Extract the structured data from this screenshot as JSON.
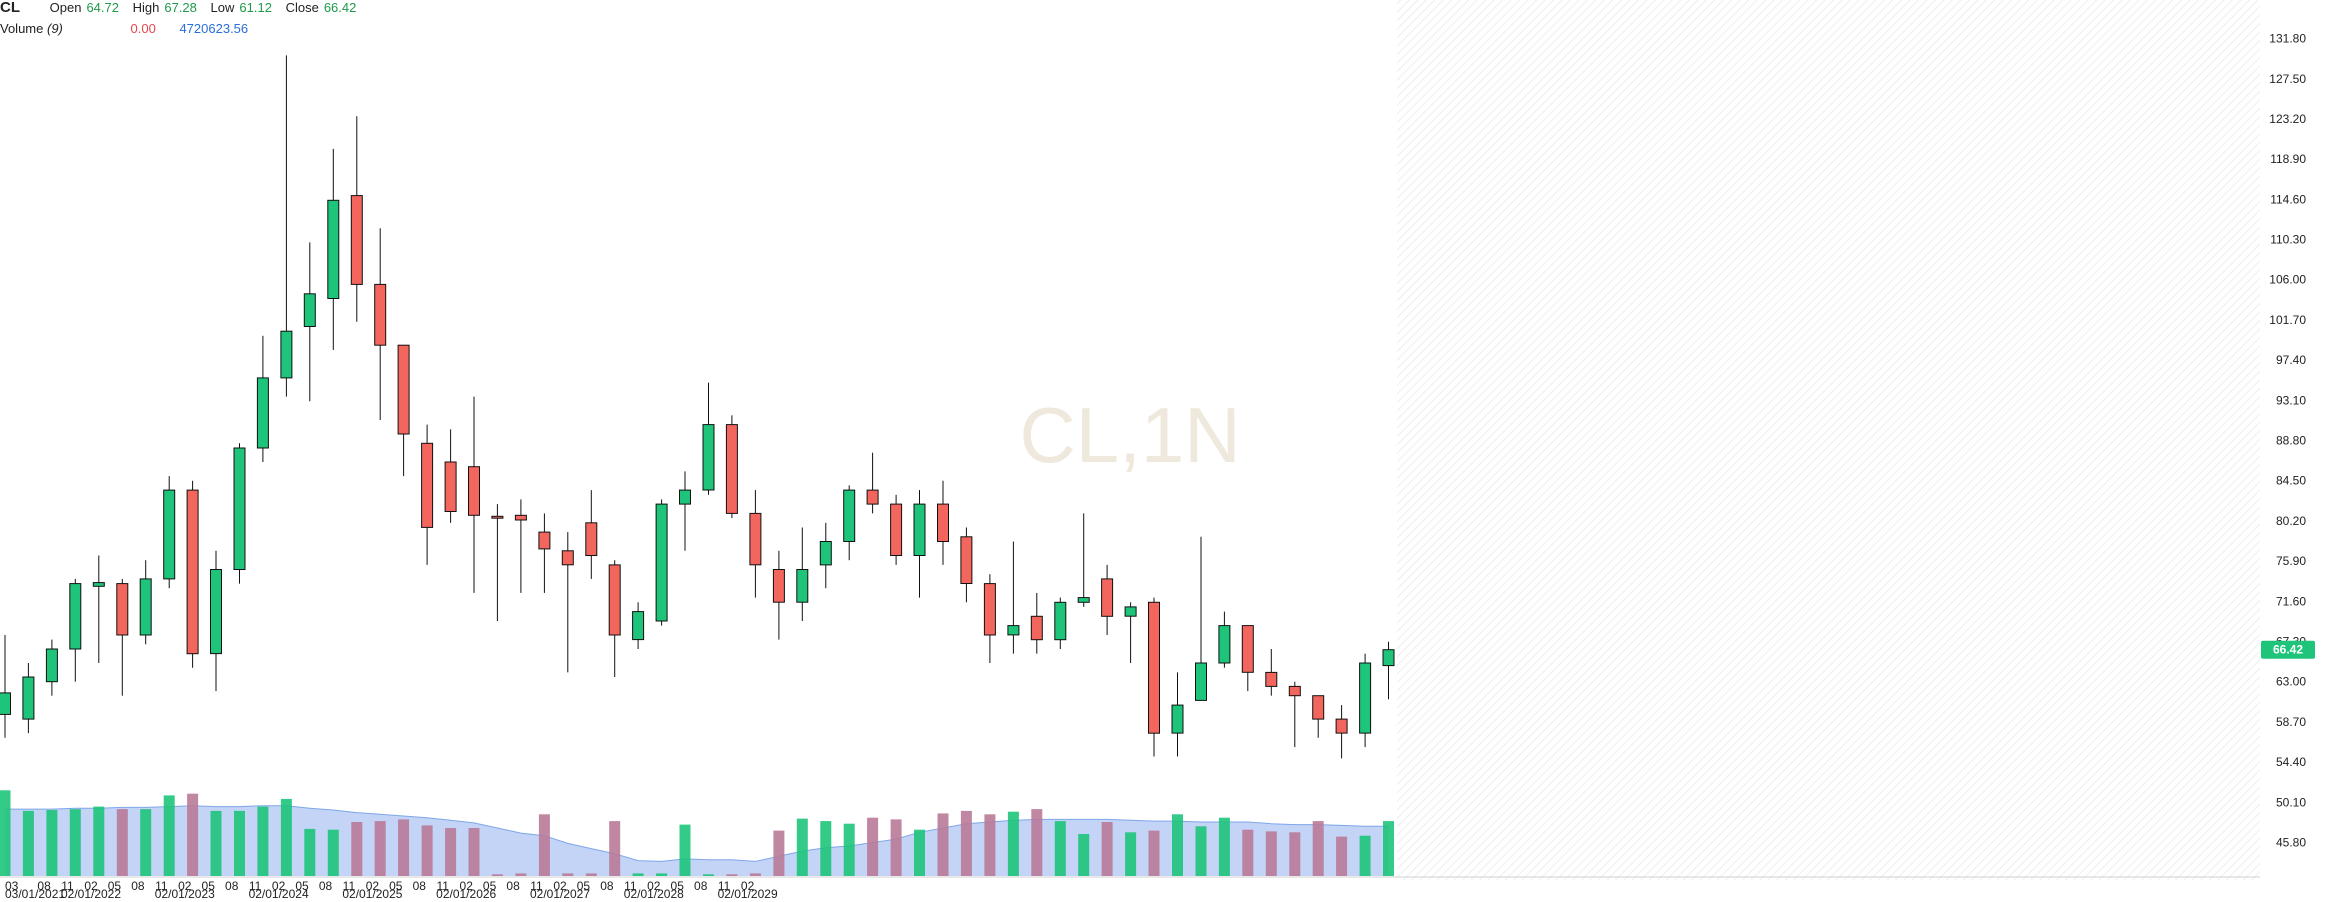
{
  "header": {
    "symbol": "CL",
    "open_label": "Open",
    "open": "64.72",
    "high_label": "High",
    "high": "67.28",
    "low_label": "Low",
    "low": "61.12",
    "close_label": "Close",
    "close": "66.42"
  },
  "volume_header": {
    "label": "Volume",
    "period": "(9)",
    "value1": "0.00",
    "value2": "4720623.56"
  },
  "watermark": "CL,1N",
  "price_badge": "66.42",
  "colors": {
    "up": "#1ec47a",
    "down": "#f2665e",
    "vol_up": "#1ec47a",
    "vol_down": "#b97a98",
    "vol_ma_fill": "#b8cdf4",
    "badge": "#1ec47a"
  },
  "chart_data": {
    "type": "candlestick",
    "ylim": [
      43.5,
      134.0
    ],
    "y_ticks": [
      "131.80",
      "127.50",
      "123.20",
      "118.90",
      "114.60",
      "110.30",
      "106.00",
      "101.70",
      "97.40",
      "93.10",
      "88.80",
      "84.50",
      "80.20",
      "75.90",
      "71.60",
      "67.30",
      "63.00",
      "58.70",
      "54.40",
      "50.10",
      "45.80"
    ],
    "x_ticks_top": [
      "03",
      "08",
      "11",
      "02",
      "05",
      "08",
      "11",
      "02",
      "05",
      "08",
      "11",
      "02",
      "05",
      "08",
      "11",
      "02",
      "05",
      "08",
      "11",
      "02",
      "05",
      "08",
      "11",
      "02",
      "05",
      "08",
      "11",
      "02",
      "05",
      "08",
      "11",
      "02"
    ],
    "x_ticks_bottom": [
      "03/01/2021",
      "02/01/2022",
      "02/01/2023",
      "02/01/2024",
      "02/01/2025",
      "02/01/2026",
      "02/01/2027",
      "02/01/2028",
      "02/01/2029"
    ],
    "candles": [
      {
        "o": 59.5,
        "h": 68.0,
        "l": 57.0,
        "c": 61.8
      },
      {
        "o": 59.0,
        "h": 65.0,
        "l": 57.5,
        "c": 63.5
      },
      {
        "o": 63.0,
        "h": 67.5,
        "l": 61.5,
        "c": 66.5
      },
      {
        "o": 66.5,
        "h": 74.0,
        "l": 63.0,
        "c": 73.5
      },
      {
        "o": 73.2,
        "h": 76.5,
        "l": 65.0,
        "c": 73.6
      },
      {
        "o": 73.5,
        "h": 74.0,
        "l": 61.5,
        "c": 68.0
      },
      {
        "o": 68.0,
        "h": 76.0,
        "l": 67.0,
        "c": 74.0
      },
      {
        "o": 74.0,
        "h": 85.0,
        "l": 73.0,
        "c": 83.5
      },
      {
        "o": 83.5,
        "h": 84.5,
        "l": 64.5,
        "c": 66.0
      },
      {
        "o": 66.0,
        "h": 77.0,
        "l": 62.0,
        "c": 75.0
      },
      {
        "o": 75.0,
        "h": 88.5,
        "l": 73.5,
        "c": 88.0
      },
      {
        "o": 88.0,
        "h": 100.0,
        "l": 86.5,
        "c": 95.5
      },
      {
        "o": 95.5,
        "h": 130.0,
        "l": 93.5,
        "c": 100.5
      },
      {
        "o": 101.0,
        "h": 110.0,
        "l": 93.0,
        "c": 104.5
      },
      {
        "o": 104.0,
        "h": 120.0,
        "l": 98.5,
        "c": 114.5
      },
      {
        "o": 115.0,
        "h": 123.5,
        "l": 101.5,
        "c": 105.5
      },
      {
        "o": 105.5,
        "h": 111.5,
        "l": 91.0,
        "c": 99.0
      },
      {
        "o": 99.0,
        "h": 99.0,
        "l": 85.0,
        "c": 89.5
      },
      {
        "o": 88.5,
        "h": 90.5,
        "l": 75.5,
        "c": 79.5
      },
      {
        "o": 86.5,
        "h": 90.0,
        "l": 80.0,
        "c": 81.2
      },
      {
        "o": 86.0,
        "h": 93.5,
        "l": 72.5,
        "c": 80.8
      },
      {
        "o": 80.7,
        "h": 82.0,
        "l": 69.5,
        "c": 80.5
      },
      {
        "o": 80.8,
        "h": 82.5,
        "l": 72.5,
        "c": 80.3
      },
      {
        "o": 79.0,
        "h": 81.0,
        "l": 72.5,
        "c": 77.2
      },
      {
        "o": 77.0,
        "h": 79.0,
        "l": 64.0,
        "c": 75.5
      },
      {
        "o": 80.0,
        "h": 83.5,
        "l": 74.0,
        "c": 76.5
      },
      {
        "o": 75.5,
        "h": 76.0,
        "l": 63.5,
        "c": 68.0
      },
      {
        "o": 67.5,
        "h": 71.5,
        "l": 66.5,
        "c": 70.5
      },
      {
        "o": 69.5,
        "h": 82.5,
        "l": 69.0,
        "c": 82.0
      },
      {
        "o": 82.0,
        "h": 85.5,
        "l": 77.0,
        "c": 83.5
      },
      {
        "o": 83.5,
        "h": 95.0,
        "l": 83.0,
        "c": 90.5
      },
      {
        "o": 90.5,
        "h": 91.5,
        "l": 80.5,
        "c": 81.0
      },
      {
        "o": 81.0,
        "h": 83.5,
        "l": 72.0,
        "c": 75.5
      },
      {
        "o": 75.0,
        "h": 77.0,
        "l": 67.5,
        "c": 71.5
      },
      {
        "o": 71.5,
        "h": 79.5,
        "l": 69.5,
        "c": 75.0
      },
      {
        "o": 75.5,
        "h": 80.0,
        "l": 73.0,
        "c": 78.0
      },
      {
        "o": 78.0,
        "h": 84.0,
        "l": 76.0,
        "c": 83.5
      },
      {
        "o": 83.5,
        "h": 87.5,
        "l": 81.0,
        "c": 82.0
      },
      {
        "o": 82.0,
        "h": 83.0,
        "l": 75.5,
        "c": 76.5
      },
      {
        "o": 76.5,
        "h": 83.5,
        "l": 72.0,
        "c": 82.0
      },
      {
        "o": 82.0,
        "h": 84.5,
        "l": 75.5,
        "c": 78.0
      },
      {
        "o": 78.5,
        "h": 79.5,
        "l": 71.5,
        "c": 73.5
      },
      {
        "o": 73.5,
        "h": 74.5,
        "l": 65.0,
        "c": 68.0
      },
      {
        "o": 68.0,
        "h": 78.0,
        "l": 66.0,
        "c": 69.0
      },
      {
        "o": 70.0,
        "h": 72.5,
        "l": 66.0,
        "c": 67.5
      },
      {
        "o": 67.5,
        "h": 72.0,
        "l": 66.5,
        "c": 71.5
      },
      {
        "o": 71.5,
        "h": 81.0,
        "l": 71.0,
        "c": 72.0
      },
      {
        "o": 74.0,
        "h": 75.5,
        "l": 68.0,
        "c": 70.0
      },
      {
        "o": 70.0,
        "h": 71.5,
        "l": 65.0,
        "c": 71.0
      },
      {
        "o": 71.5,
        "h": 72.0,
        "l": 55.0,
        "c": 57.5
      },
      {
        "o": 57.5,
        "h": 64.0,
        "l": 55.0,
        "c": 60.5
      },
      {
        "o": 61.0,
        "h": 78.5,
        "l": 61.0,
        "c": 65.0
      },
      {
        "o": 65.0,
        "h": 70.5,
        "l": 64.5,
        "c": 69.0
      },
      {
        "o": 69.0,
        "h": 69.0,
        "l": 62.0,
        "c": 64.0
      },
      {
        "o": 64.0,
        "h": 66.5,
        "l": 61.5,
        "c": 62.5
      },
      {
        "o": 62.5,
        "h": 63.0,
        "l": 56.0,
        "c": 61.5
      },
      {
        "o": 61.5,
        "h": 61.5,
        "l": 57.0,
        "c": 59.0
      },
      {
        "o": 59.0,
        "h": 60.5,
        "l": 54.8,
        "c": 57.5
      },
      {
        "o": 57.5,
        "h": 66.0,
        "l": 56.0,
        "c": 65.0
      },
      {
        "o": 64.72,
        "h": 67.28,
        "l": 61.12,
        "c": 66.42
      }
    ],
    "volume_ylim": [
      0,
      1.05
    ],
    "volume": [
      1.0,
      0.76,
      0.77,
      0.78,
      0.81,
      0.78,
      0.78,
      0.94,
      0.96,
      0.76,
      0.76,
      0.81,
      0.9,
      0.55,
      0.54,
      0.63,
      0.64,
      0.66,
      0.59,
      0.56,
      0.56,
      0.02,
      0.03,
      0.72,
      0.03,
      0.03,
      0.64,
      0.03,
      0.03,
      0.6,
      0.02,
      0.02,
      0.03,
      0.53,
      0.67,
      0.64,
      0.61,
      0.68,
      0.66,
      0.54,
      0.73,
      0.76,
      0.72,
      0.75,
      0.78,
      0.64,
      0.49,
      0.63,
      0.51,
      0.53,
      0.72,
      0.58,
      0.68,
      0.54,
      0.52,
      0.51,
      0.64,
      0.46,
      0.47,
      0.64
    ],
    "volume_ma": [
      0.78,
      0.78,
      0.78,
      0.79,
      0.79,
      0.8,
      0.8,
      0.81,
      0.82,
      0.81,
      0.81,
      0.82,
      0.82,
      0.79,
      0.77,
      0.74,
      0.72,
      0.7,
      0.68,
      0.65,
      0.62,
      0.56,
      0.5,
      0.47,
      0.38,
      0.32,
      0.26,
      0.18,
      0.17,
      0.2,
      0.19,
      0.19,
      0.17,
      0.23,
      0.29,
      0.33,
      0.35,
      0.39,
      0.43,
      0.51,
      0.56,
      0.61,
      0.63,
      0.65,
      0.66,
      0.66,
      0.66,
      0.66,
      0.65,
      0.64,
      0.64,
      0.63,
      0.63,
      0.63,
      0.61,
      0.6,
      0.6,
      0.59,
      0.58,
      0.58
    ]
  }
}
